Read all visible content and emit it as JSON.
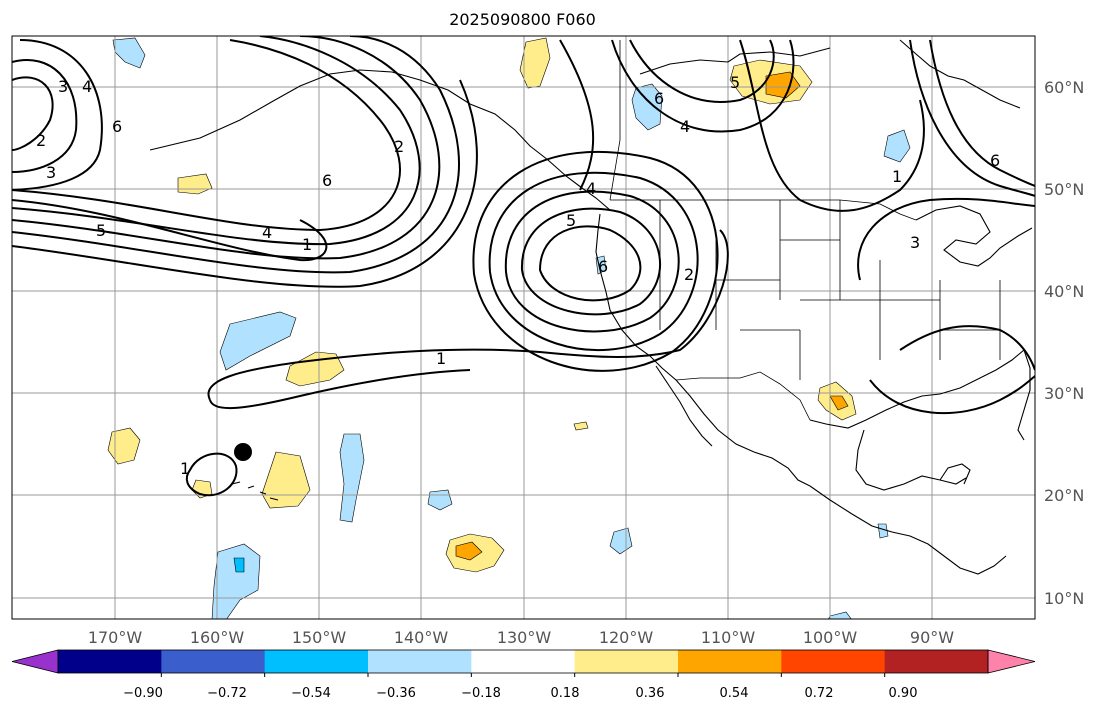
{
  "title": "2025090800 F060",
  "lat_labels": [
    "60°N",
    "50°N",
    "40°N",
    "30°N",
    "20°N",
    "10°N"
  ],
  "lon_labels": [
    "170°W",
    "160°W",
    "150°W",
    "140°W",
    "130°W",
    "120°W",
    "110°W",
    "100°W",
    "90°W"
  ],
  "colorbar": {
    "colors": [
      "#9932CC",
      "#00008B",
      "#3A5FCD",
      "#00BFFF",
      "#B0E2FF",
      "#FFFFFF",
      "#FFEC8B",
      "#FFA500",
      "#FF4500",
      "#B22222",
      "#FF82AB"
    ],
    "tick_labels": [
      "−0.90",
      "−0.72",
      "−0.54",
      "−0.36",
      "−0.18",
      "0.18",
      "0.36",
      "0.54",
      "0.72",
      "0.90"
    ]
  },
  "contour_labels": [
    "3",
    "4",
    "6",
    "2",
    "3",
    "5",
    "6",
    "4",
    "1",
    "2",
    "4",
    "5",
    "6",
    "2",
    "6",
    "4",
    "5",
    "1",
    "6",
    "3",
    "1",
    "1"
  ],
  "marker": "point",
  "colors": {
    "contour": "#000000",
    "grid": "#999999",
    "axis_labels": "#555555"
  }
}
